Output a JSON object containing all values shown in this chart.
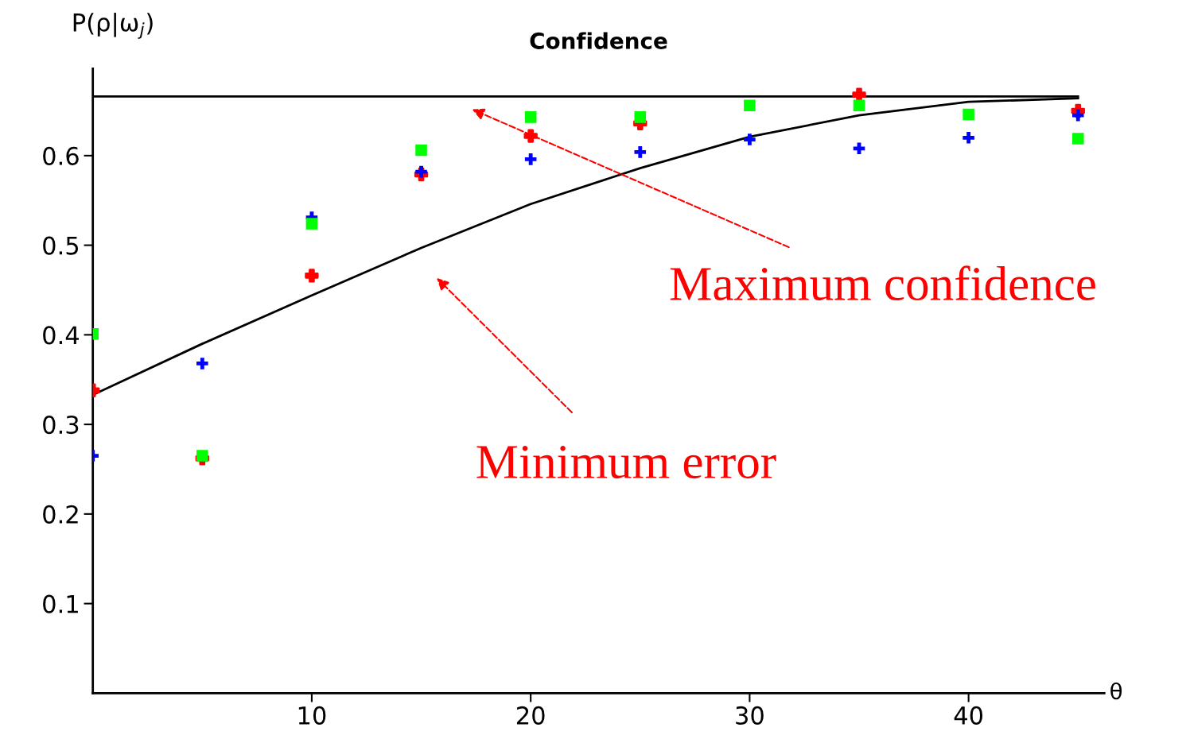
{
  "chart_data": {
    "type": "scatter",
    "title": "Confidence",
    "xlabel": "θ",
    "ylabel": "P(ρ|ω$_{j}$)",
    "x": [
      0,
      5,
      10,
      15,
      20,
      25,
      30,
      35,
      40,
      45
    ],
    "xlim": [
      0,
      46.2
    ],
    "ylim": [
      0,
      0.697
    ],
    "xticks": [
      10,
      20,
      30,
      40
    ],
    "yticks": [
      0.1,
      0.2,
      0.3,
      0.4,
      0.5,
      0.6
    ],
    "grid": false,
    "legend": false,
    "series": [
      {
        "type": "line",
        "color": "#000000",
        "x": [
          0,
          45
        ],
        "values": [
          0.666,
          0.666
        ],
        "marker": "none",
        "line_style": "solid"
      },
      {
        "type": "line",
        "color": "#000000",
        "values": [
          0.333,
          0.39,
          0.444,
          0.497,
          0.546,
          0.586,
          0.621,
          0.645,
          0.66,
          0.664
        ],
        "marker": "none",
        "line_style": "solid"
      },
      {
        "type": "scatter",
        "color": "#ff0000",
        "marker": "cross",
        "values": [
          0.338,
          0.262,
          0.466,
          0.579,
          0.622,
          0.636,
          null,
          0.668,
          null,
          0.65
        ]
      },
      {
        "type": "scatter",
        "color": "#0000ff",
        "marker": "cross",
        "values": [
          0.265,
          0.368,
          0.531,
          0.582,
          0.596,
          0.604,
          0.618,
          0.608,
          0.62,
          0.645
        ]
      },
      {
        "type": "scatter",
        "color": "#00ff00",
        "marker": "square",
        "values": [
          0.401,
          0.265,
          0.524,
          0.606,
          0.643,
          0.643,
          0.656,
          0.656,
          0.646,
          0.619
        ]
      }
    ],
    "annotations": [
      "Maximum confidence",
      "Minimum error"
    ]
  }
}
